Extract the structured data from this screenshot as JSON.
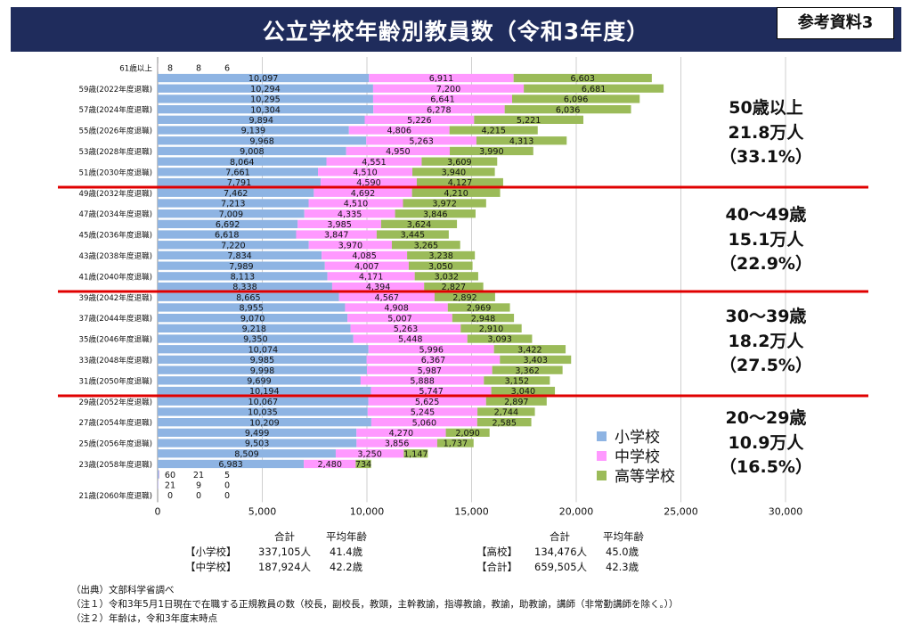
{
  "header": {
    "title": "公立学校年齢別教員数（令和3年度）",
    "ref_label": "参考資料3"
  },
  "legend": [
    "小学校",
    "中学校",
    "高等学校"
  ],
  "colors": {
    "elem": "#8eb4e3",
    "junior": "#ff99ff",
    "high": "#9bbb59",
    "header": "#1f2c5c",
    "divider": "#e00000"
  },
  "chart_data": {
    "type": "bar",
    "orientation": "horizontal",
    "stacked": true,
    "xlim": [
      0,
      30000
    ],
    "xticks": [
      "0",
      "5,000",
      "10,000",
      "15,000",
      "20,000",
      "25,000",
      "30,000"
    ],
    "y_tick_labels": {
      "0": "61歳以上",
      "2": "59歳(2022年度退職)",
      "4": "57歳(2024年度退職)",
      "6": "55歳(2026年度退職)",
      "8": "53歳(2028年度退職)",
      "10": "51歳(2030年度退職)",
      "12": "49歳(2032年度退職)",
      "14": "47歳(2034年度退職)",
      "16": "45歳(2036年度退職)",
      "18": "43歳(2038年度退職)",
      "20": "41歳(2040年度退職)",
      "22": "39歳(2042年度退職)",
      "24": "37歳(2044年度退職)",
      "26": "35歳(2046年度退職)",
      "28": "33歳(2048年度退職)",
      "30": "31歳(2050年度退職)",
      "32": "29歳(2052年度退職)",
      "34": "27歳(2054年度退職)",
      "36": "25歳(2056年度退職)",
      "38": "23歳(2058年度退職)",
      "41": "21歳(2060年度退職)"
    },
    "series": [
      {
        "name": "小学校",
        "values": [
          8,
          10097,
          10294,
          10295,
          10304,
          9894,
          9139,
          9968,
          9008,
          8064,
          7661,
          7791,
          7462,
          7213,
          7009,
          6692,
          6618,
          7220,
          7834,
          7989,
          8113,
          8338,
          8665,
          8955,
          9070,
          9218,
          9350,
          10074,
          9985,
          9998,
          9699,
          10194,
          10067,
          10035,
          10209,
          9499,
          9503,
          8509,
          6983,
          60,
          21,
          0
        ],
        "labels": [
          "8",
          "10,097",
          "10,294",
          "10,295",
          "10,304",
          "9,894",
          "9,139",
          "9,968",
          "9,008",
          "8,064",
          "7,661",
          "7,791",
          "7,462",
          "7,213",
          "7,009",
          "6,692",
          "6,618",
          "7,220",
          "7,834",
          "7,989",
          "8,113",
          "8,338",
          "8,665",
          "8,955",
          "9,070",
          "9,218",
          "9,350",
          "10,074",
          "9,985",
          "9,998",
          "9,699",
          "10,194",
          "10,067",
          "10,035",
          "10,209",
          "9,499",
          "9,503",
          "8,509",
          "6,983",
          "60",
          "21",
          "0"
        ]
      },
      {
        "name": "中学校",
        "values": [
          8,
          6911,
          7200,
          6641,
          6278,
          5226,
          4806,
          5263,
          4950,
          4551,
          4510,
          4590,
          4692,
          4510,
          4335,
          3985,
          3847,
          3970,
          4085,
          4007,
          4171,
          4394,
          4567,
          4908,
          5007,
          5263,
          5448,
          5996,
          6367,
          5987,
          5888,
          5747,
          5625,
          5245,
          5060,
          4270,
          3856,
          3250,
          2480,
          21,
          9,
          0
        ],
        "labels": [
          "8",
          "6,911",
          "7,200",
          "6,641",
          "6,278",
          "5,226",
          "4,806",
          "5,263",
          "4,950",
          "4,551",
          "4,510",
          "4,590",
          "4,692",
          "4,510",
          "4,335",
          "3,985",
          "3,847",
          "3,970",
          "4,085",
          "4,007",
          "4,171",
          "4,394",
          "4,567",
          "4,908",
          "5,007",
          "5,263",
          "5,448",
          "5,996",
          "6,367",
          "5,987",
          "5,888",
          "5,747",
          "5,625",
          "5,245",
          "5,060",
          "4,270",
          "3,856",
          "3,250",
          "2,480",
          "21",
          "9",
          "0"
        ]
      },
      {
        "name": "高等学校",
        "values": [
          6,
          6603,
          6681,
          6096,
          6036,
          5221,
          4215,
          4313,
          3990,
          3609,
          3940,
          4127,
          4210,
          3972,
          3846,
          3624,
          3445,
          3265,
          3238,
          3050,
          3032,
          2827,
          2892,
          2969,
          2948,
          2910,
          3093,
          3422,
          3403,
          3362,
          3152,
          3040,
          2897,
          2744,
          2585,
          2090,
          1737,
          1147,
          734,
          5,
          0,
          0
        ],
        "labels": [
          "6",
          "6,603",
          "6,681",
          "6,096",
          "6,036",
          "5,221",
          "4,215",
          "4,313",
          "3,990",
          "3,609",
          "3,940",
          "4,127",
          "4,210",
          "3,972",
          "3,846",
          "3,624",
          "3,445",
          "3,265",
          "3,238",
          "3,050",
          "3,032",
          "2,827",
          "2,892",
          "2,969",
          "2,948",
          "2,910",
          "3,093",
          "3,422",
          "3,403",
          "3,362",
          "3,152",
          "3,040",
          "2,897",
          "2,744",
          "2,585",
          "2,090",
          "1,737",
          "1,147",
          "734",
          "5",
          "0",
          "0"
        ]
      }
    ],
    "group_dividers_after_row": [
      11,
      21,
      31
    ],
    "legend_position": "bottom-right",
    "grid": true
  },
  "group_summaries": [
    {
      "age": "50歳以上",
      "count": "21.8万人",
      "pct": "（33.1%）"
    },
    {
      "age": "40～49歳",
      "count": "15.1万人",
      "pct": "（22.9%）"
    },
    {
      "age": "30～39歳",
      "count": "18.2万人",
      "pct": "（27.5%）"
    },
    {
      "age": "20～29歳",
      "count": "10.9万人",
      "pct": "（16.5%）"
    }
  ],
  "totals": {
    "col_total_header": "合計",
    "col_avg_header": "平均年齢",
    "left_rows": [
      {
        "label": "【小学校】",
        "total": "337,105人",
        "avg": "41.4歳"
      },
      {
        "label": "【中学校】",
        "total": "187,924人",
        "avg": "42.2歳"
      }
    ],
    "right_rows": [
      {
        "label": "【高校】",
        "total": "134,476人",
        "avg": "45.0歳"
      },
      {
        "label": "【合計】",
        "total": "659,505人",
        "avg": "42.3歳"
      }
    ]
  },
  "notes": [
    "（出典）文部科学省調べ",
    "（注１）令和3年5月1日現在で在職する正規教員の数（校長，副校長，教頭，主幹教諭，指導教諭，教諭，助教諭，講師（非常勤講師を除く。））",
    "（注２）年齢は，令和3年度末時点"
  ]
}
